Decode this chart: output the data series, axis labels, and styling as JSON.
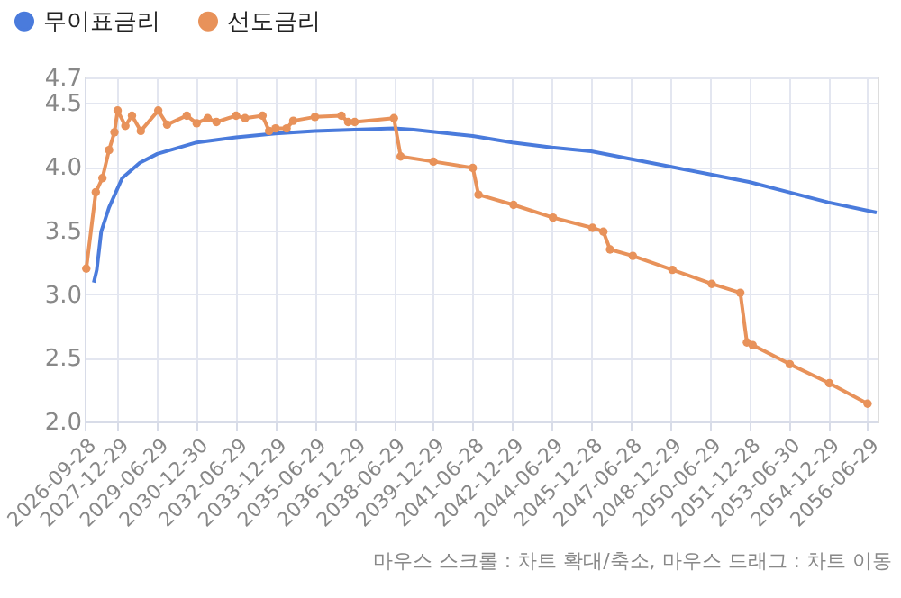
{
  "chart_data": {
    "type": "line",
    "xlim": [
      "2026-09-28",
      "2056-11-15"
    ],
    "xticks": [
      "2026-09-28",
      "2027-12-29",
      "2029-06-29",
      "2030-12-30",
      "2032-06-29",
      "2033-12-29",
      "2035-06-29",
      "2036-12-29",
      "2038-06-29",
      "2039-12-29",
      "2041-06-28",
      "2042-12-29",
      "2044-06-29",
      "2045-12-28",
      "2047-06-28",
      "2048-12-29",
      "2050-06-29",
      "2051-12-28",
      "2053-06-30",
      "2054-12-29",
      "2056-06-29"
    ],
    "ylim": [
      2.0,
      4.7
    ],
    "yticks": [
      {
        "value": 2,
        "label": "2.0"
      },
      {
        "value": 2.5,
        "label": "2.5"
      },
      {
        "value": 3,
        "label": "3.0"
      },
      {
        "value": 3.5,
        "label": "3.5"
      },
      {
        "value": 4,
        "label": "4.0"
      },
      {
        "value": 4.5,
        "label": "4.5"
      },
      {
        "value": 4.7,
        "label": "4.7"
      }
    ],
    "grid": true,
    "legend": "top left",
    "line_style": "solid",
    "annotations": [
      "마우스 스크롤 : 차트 확대/축소, 마우스 드래그 : 차트 이동"
    ],
    "series": [
      {
        "name": "무이표금리",
        "color": "#4a7bdc",
        "marker": "none",
        "x": [
          "2027-02-01",
          "2027-03-15",
          "2027-05-15",
          "2027-09-01",
          "2028-03-01",
          "2028-11-01",
          "2029-07-01",
          "2030-12-30",
          "2032-06-29",
          "2033-12-29",
          "2035-06-29",
          "2036-12-29",
          "2038-06-29",
          "2039-04-01",
          "2041-06-28",
          "2042-12-29",
          "2044-06-29",
          "2045-12-28",
          "2047-06-28",
          "2048-12-29",
          "2050-06-29",
          "2051-12-28",
          "2053-06-30",
          "2054-12-29",
          "2056-11-01"
        ],
        "values": [
          3.09,
          3.19,
          3.49,
          3.68,
          3.91,
          4.03,
          4.1,
          4.19,
          4.23,
          4.26,
          4.28,
          4.29,
          4.3,
          4.29,
          4.24,
          4.19,
          4.15,
          4.12,
          4.06,
          4.0,
          3.94,
          3.88,
          3.8,
          3.72,
          3.64
        ]
      },
      {
        "name": "선도금리",
        "color": "#e8925a",
        "marker": "circle",
        "x": [
          "2026-10-20",
          "2027-03-01",
          "2027-06-01",
          "2027-09-01",
          "2027-11-15",
          "2027-12-29",
          "2028-04-15",
          "2028-07-15",
          "2028-11-15",
          "2029-07-15",
          "2029-11-15",
          "2030-08-15",
          "2030-12-30",
          "2031-06-01",
          "2031-10-01",
          "2032-06-29",
          "2032-11-01",
          "2033-07-01",
          "2033-10-01",
          "2033-12-29",
          "2034-06-01",
          "2034-09-01",
          "2035-06-29",
          "2036-07-01",
          "2036-10-01",
          "2037-01-01",
          "2038-06-29",
          "2038-10-01",
          "2039-12-29",
          "2041-06-28",
          "2041-09-15",
          "2043-01-15",
          "2044-07-15",
          "2046-01-15",
          "2046-06-15",
          "2046-09-15",
          "2047-07-28",
          "2049-01-28",
          "2050-07-28",
          "2051-08-28",
          "2051-11-28",
          "2052-02-15",
          "2053-07-15",
          "2055-01-15",
          "2056-06-29"
        ],
        "values": [
          3.2,
          3.8,
          3.91,
          4.13,
          4.27,
          4.44,
          4.32,
          4.4,
          4.28,
          4.44,
          4.33,
          4.4,
          4.34,
          4.38,
          4.35,
          4.4,
          4.38,
          4.4,
          4.28,
          4.3,
          4.3,
          4.36,
          4.39,
          4.4,
          4.35,
          4.35,
          4.38,
          4.08,
          4.04,
          3.99,
          3.78,
          3.7,
          3.6,
          3.52,
          3.49,
          3.35,
          3.3,
          3.19,
          3.08,
          3.01,
          2.62,
          2.6,
          2.45,
          2.3,
          2.14
        ]
      }
    ]
  }
}
